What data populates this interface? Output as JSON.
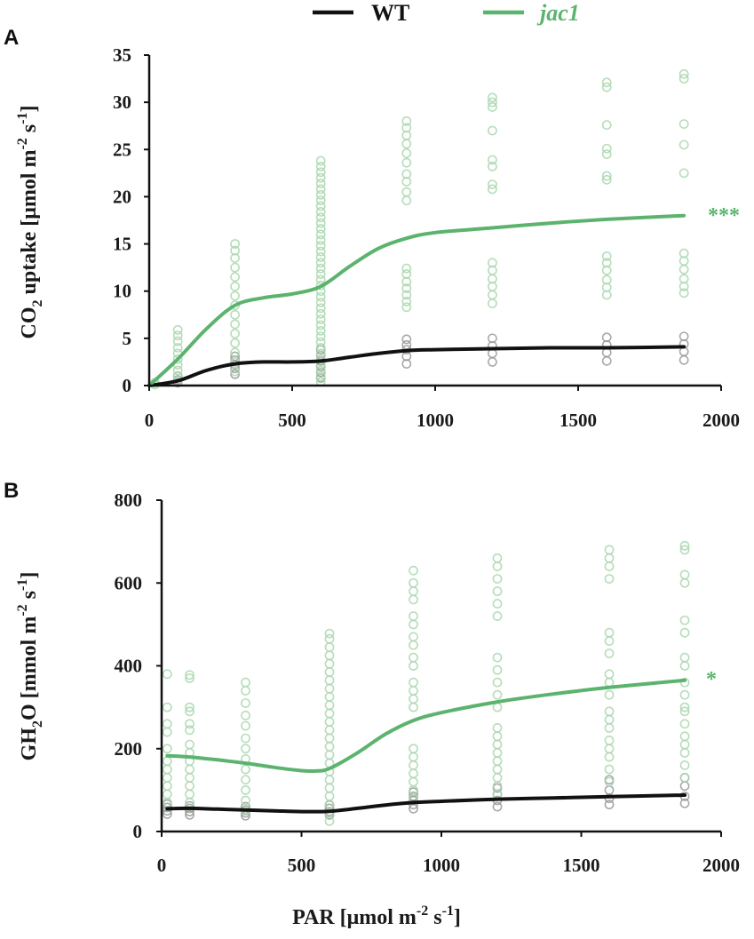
{
  "colors": {
    "wt": "#111111",
    "jac1": "#5cb36e",
    "jac1_points": "#a9d7ae",
    "wt_points": "#9a9a9a",
    "axis": "#111111"
  },
  "legend": [
    {
      "label": "WT",
      "color": "#111111",
      "italic": false
    },
    {
      "label": "jac1",
      "color": "#5cb36e",
      "italic": true
    }
  ],
  "shared_xlabel": {
    "main": "PAR [μmol m",
    "sup1": "-2",
    "mid": " s",
    "sup2": "-1",
    "end": "]"
  },
  "chart_data": [
    {
      "panel": "A",
      "type": "scatter",
      "ylabel": {
        "pre": "CO",
        "sub": "2",
        "mid": " uptake [μmol m",
        "sup1": "-2",
        "mid2": " s",
        "sup2": "-1",
        "end": "]"
      },
      "xlim": [
        0,
        2000
      ],
      "ylim": [
        0,
        35
      ],
      "xticks": [
        "0",
        "500",
        "1000",
        "1500",
        "2000"
      ],
      "yticks": [
        "0",
        "5",
        "10",
        "15",
        "20",
        "25",
        "30",
        "35"
      ],
      "significance": "***",
      "series": [
        {
          "name": "WT",
          "curve": {
            "x": [
              0,
              100,
              200,
              300,
              400,
              500,
              600,
              700,
              800,
              900,
              1000,
              1200,
              1400,
              1600,
              1870
            ],
            "y": [
              0,
              0.5,
              1.6,
              2.3,
              2.5,
              2.5,
              2.6,
              3.0,
              3.4,
              3.7,
              3.8,
              3.9,
              4.0,
              4.0,
              4.1
            ]
          },
          "points": [
            {
              "x": 100,
              "y": [
                0.3,
                0.6,
                1.0
              ]
            },
            {
              "x": 300,
              "y": [
                1.2,
                1.8,
                2.2,
                2.7,
                3.1
              ]
            },
            {
              "x": 600,
              "y": [
                0.8,
                1.4,
                2.0,
                2.6,
                3.2,
                3.8
              ]
            },
            {
              "x": 900,
              "y": [
                2.3,
                3.1,
                3.8,
                4.3,
                4.9
              ]
            },
            {
              "x": 1200,
              "y": [
                2.5,
                3.4,
                4.2,
                5.0
              ]
            },
            {
              "x": 1600,
              "y": [
                2.6,
                3.5,
                4.3,
                5.1
              ]
            },
            {
              "x": 1870,
              "y": [
                2.7,
                3.6,
                4.4,
                5.2
              ]
            }
          ]
        },
        {
          "name": "jac1",
          "curve": {
            "x": [
              0,
              100,
              200,
              300,
              400,
              500,
              600,
              700,
              800,
              900,
              1000,
              1200,
              1400,
              1600,
              1870
            ],
            "y": [
              0,
              2.8,
              6.0,
              8.5,
              9.3,
              9.7,
              10.5,
              12.6,
              14.5,
              15.6,
              16.2,
              16.7,
              17.2,
              17.6,
              18.0
            ]
          },
          "points": [
            {
              "x": 20,
              "y": [
                0.1,
                0.3
              ]
            },
            {
              "x": 100,
              "y": [
                0.5,
                1.0,
                1.6,
                2.2,
                2.8,
                3.4,
                4.0,
                4.7,
                5.3,
                5.9
              ]
            },
            {
              "x": 300,
              "y": [
                1.5,
                2.5,
                3.5,
                4.5,
                5.5,
                6.5,
                7.5,
                8.5,
                9.5,
                10.5,
                11.5,
                12.5,
                13.5,
                14.3,
                15.0
              ]
            },
            {
              "x": 600,
              "y": [
                0.4,
                1.0,
                1.6,
                2.2,
                2.8,
                3.4,
                4.0,
                4.6,
                5.2,
                5.8,
                6.4,
                7.0,
                7.6,
                8.2,
                8.8,
                9.4,
                10.0,
                10.6,
                11.2,
                11.8,
                12.4,
                13.0,
                13.6,
                14.2,
                14.8,
                15.4,
                16.0,
                16.6,
                17.2,
                17.8,
                18.4,
                19.0,
                19.6,
                20.2,
                20.8,
                21.4,
                22.0,
                22.6,
                23.2,
                23.8
              ]
            },
            {
              "x": 900,
              "y": [
                8.3,
                8.9,
                9.6,
                10.3,
                11.0,
                11.8,
                12.4,
                19.6,
                20.5,
                21.6,
                22.4,
                23.6,
                24.6,
                25.6,
                26.5,
                27.3,
                28.0
              ]
            },
            {
              "x": 1200,
              "y": [
                8.7,
                9.6,
                10.5,
                11.3,
                12.2,
                13.0,
                20.8,
                21.3,
                23.2,
                23.9,
                27.0,
                29.5,
                30.0,
                30.5
              ]
            },
            {
              "x": 1600,
              "y": [
                9.6,
                10.4,
                11.2,
                12.2,
                13.0,
                13.7,
                21.8,
                22.2,
                24.5,
                25.1,
                27.6,
                31.6,
                32.1
              ]
            },
            {
              "x": 1870,
              "y": [
                9.8,
                10.5,
                11.3,
                12.3,
                13.2,
                14.0,
                22.5,
                25.5,
                27.7,
                32.5,
                33.0
              ]
            }
          ]
        }
      ]
    },
    {
      "panel": "B",
      "type": "scatter",
      "ylabel": {
        "pre": "GH",
        "sub": "2",
        "mid": "O [mmol m",
        "sup1": "-2",
        "mid2": " s",
        "sup2": "-1",
        "end": "]"
      },
      "xlim": [
        0,
        2000
      ],
      "ylim": [
        0,
        800
      ],
      "xticks": [
        "0",
        "500",
        "1000",
        "1500",
        "2000"
      ],
      "yticks": [
        "0",
        "200",
        "400",
        "600",
        "800"
      ],
      "significance": "*",
      "series": [
        {
          "name": "WT",
          "curve": {
            "x": [
              20,
              100,
              200,
              300,
              400,
              500,
              600,
              700,
              800,
              900,
              1000,
              1200,
              1400,
              1600,
              1870
            ],
            "y": [
              55,
              56,
              54,
              52,
              50,
              48,
              49,
              56,
              64,
              70,
              73,
              78,
              81,
              84,
              88
            ]
          },
          "points": [
            {
              "x": 20,
              "y": [
                42,
                50,
                58,
                66
              ]
            },
            {
              "x": 100,
              "y": [
                40,
                48,
                56,
                62
              ]
            },
            {
              "x": 300,
              "y": [
                38,
                45,
                52,
                60
              ]
            },
            {
              "x": 600,
              "y": [
                40,
                48,
                56,
                64
              ]
            },
            {
              "x": 900,
              "y": [
                55,
                65,
                75,
                85,
                95
              ]
            },
            {
              "x": 1200,
              "y": [
                60,
                75,
                90,
                105
              ]
            },
            {
              "x": 1600,
              "y": [
                65,
                80,
                100,
                125
              ]
            },
            {
              "x": 1870,
              "y": [
                68,
                85,
                110,
                130
              ]
            }
          ]
        },
        {
          "name": "jac1",
          "curve": {
            "x": [
              20,
              100,
              200,
              300,
              400,
              500,
              550,
              600,
              700,
              800,
              900,
              1000,
              1200,
              1400,
              1600,
              1870
            ],
            "y": [
              183,
              180,
              173,
              165,
              155,
              147,
              146,
              152,
              190,
              235,
              268,
              287,
              313,
              332,
              348,
              365
            ]
          },
          "points": [
            {
              "x": 20,
              "y": [
                70,
                90,
                110,
                130,
                150,
                170,
                200,
                240,
                260,
                300,
                380
              ]
            },
            {
              "x": 100,
              "y": [
                70,
                90,
                110,
                130,
                150,
                170,
                190,
                210,
                245,
                260,
                290,
                300,
                370,
                378
              ]
            },
            {
              "x": 300,
              "y": [
                50,
                75,
                100,
                125,
                150,
                175,
                200,
                225,
                255,
                280,
                310,
                340,
                360
              ]
            },
            {
              "x": 600,
              "y": [
                25,
                45,
                65,
                85,
                105,
                125,
                145,
                165,
                185,
                205,
                225,
                245,
                265,
                285,
                305,
                325,
                345,
                365,
                385,
                405,
                425,
                445,
                465,
                478
              ]
            },
            {
              "x": 900,
              "y": [
                80,
                100,
                120,
                140,
                160,
                180,
                200,
                300,
                320,
                340,
                360,
                400,
                420,
                450,
                470,
                500,
                520,
                560,
                580,
                600,
                630
              ]
            },
            {
              "x": 1200,
              "y": [
                90,
                110,
                130,
                150,
                170,
                190,
                210,
                230,
                250,
                300,
                330,
                360,
                390,
                420,
                520,
                550,
                580,
                610,
                640,
                660
              ]
            },
            {
              "x": 1600,
              "y": [
                120,
                150,
                180,
                200,
                220,
                250,
                270,
                290,
                330,
                360,
                380,
                430,
                460,
                480,
                610,
                640,
                660,
                680
              ]
            },
            {
              "x": 1870,
              "y": [
                130,
                160,
                190,
                210,
                230,
                260,
                290,
                300,
                330,
                360,
                400,
                420,
                480,
                510,
                600,
                620,
                680,
                690
              ]
            }
          ]
        }
      ]
    }
  ]
}
